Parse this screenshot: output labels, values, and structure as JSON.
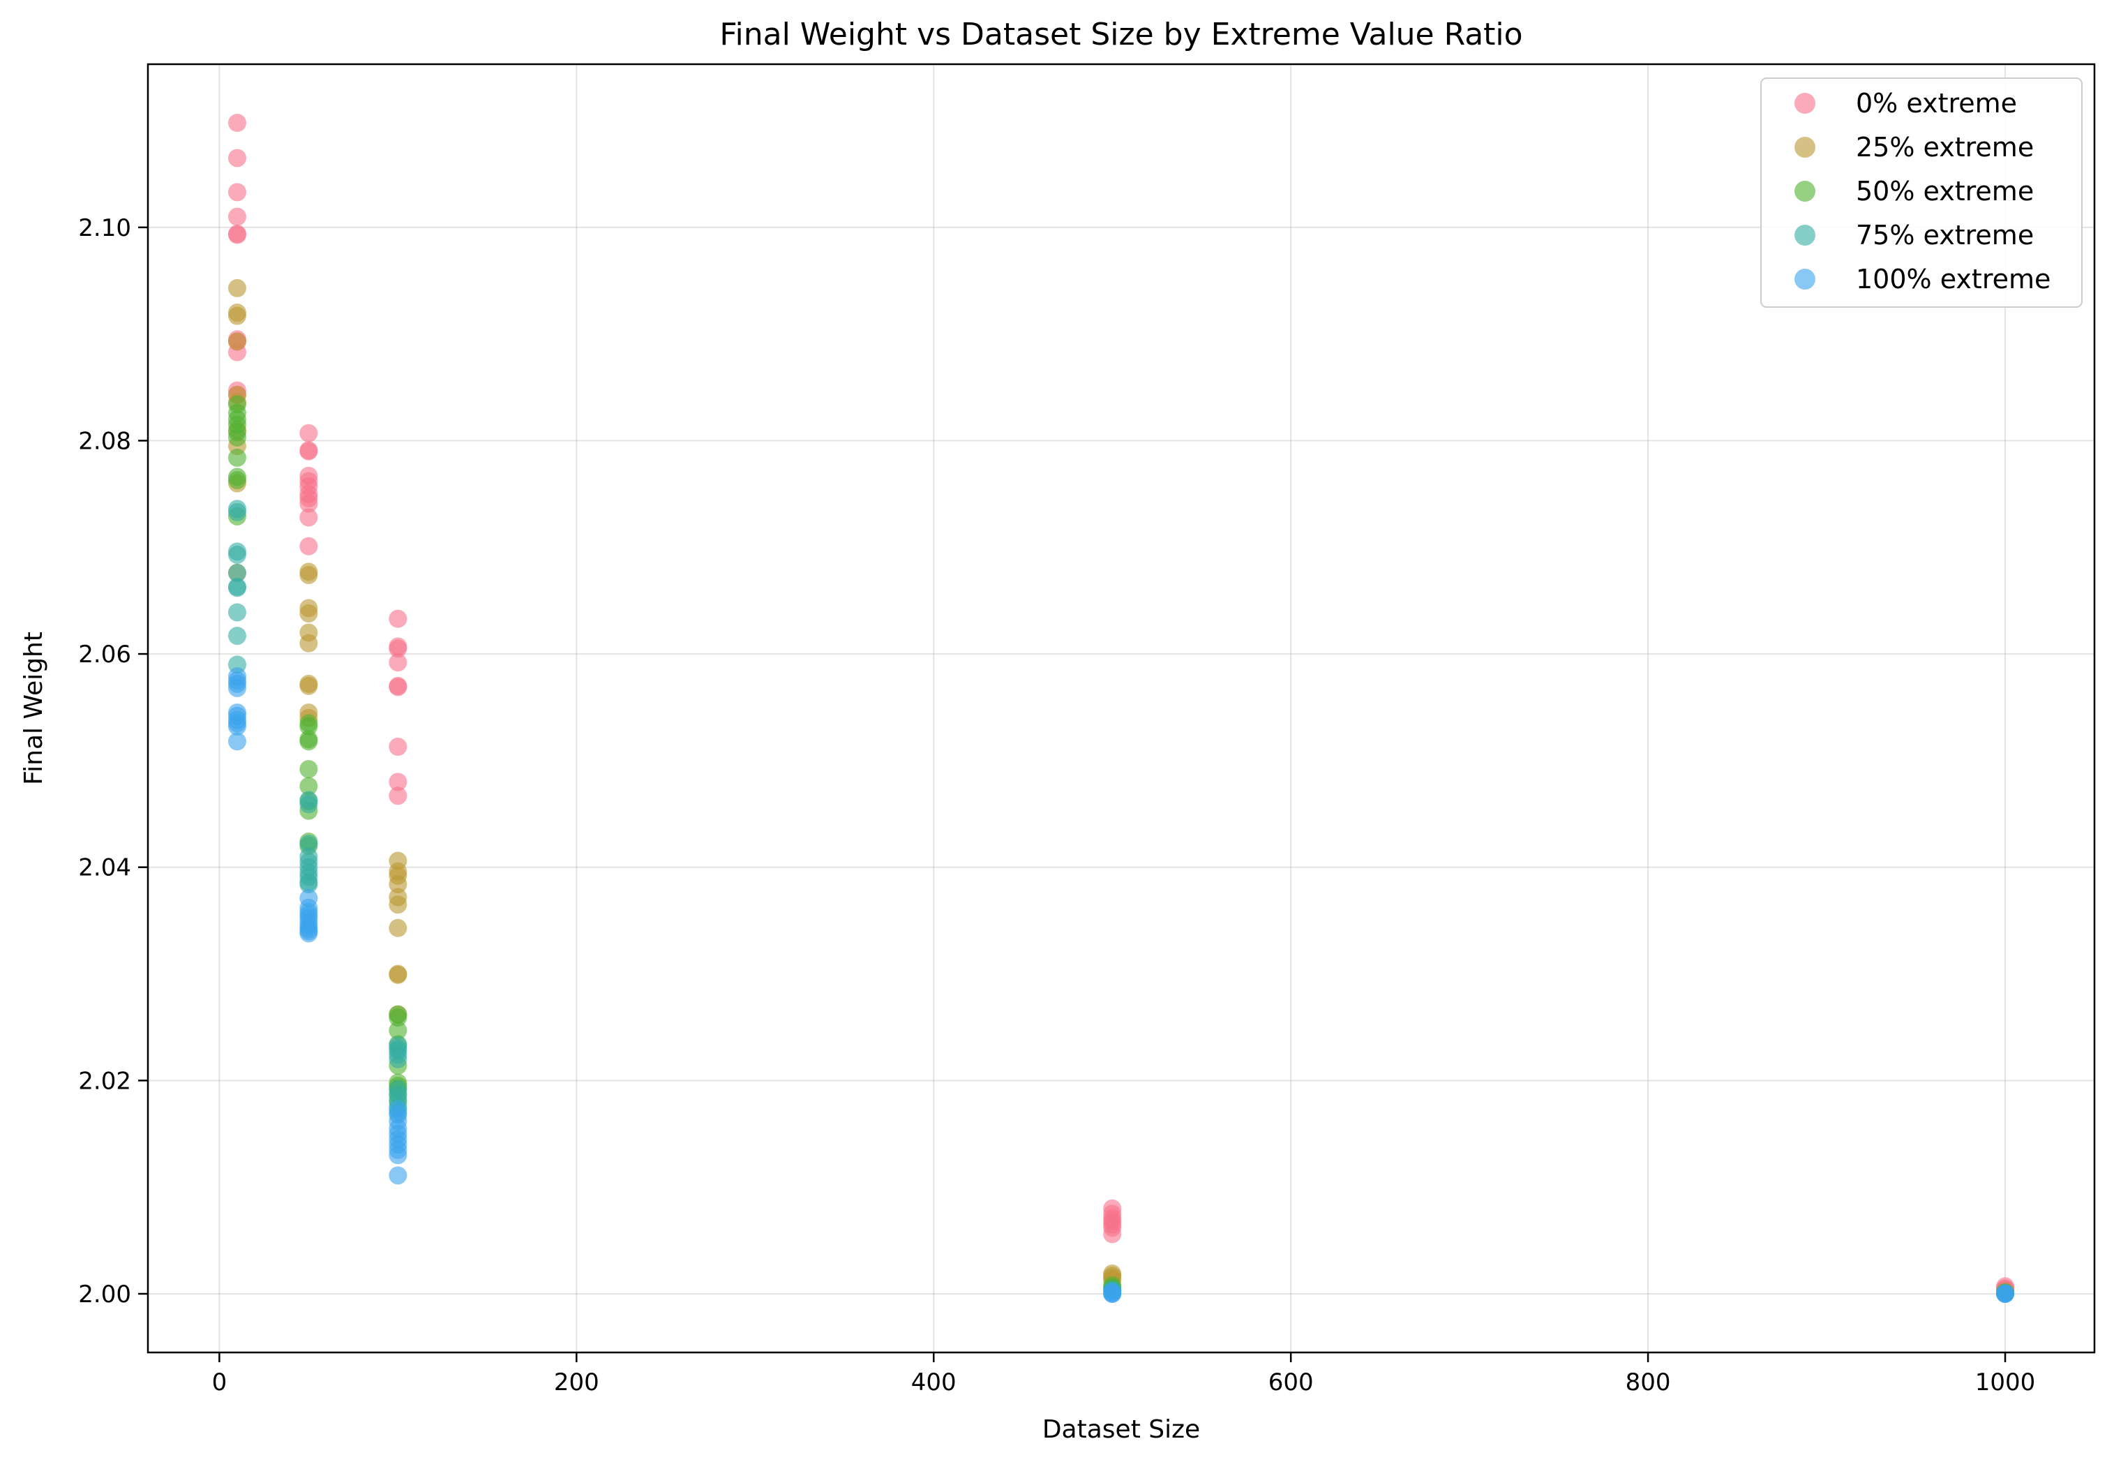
{
  "chart_data": {
    "type": "scatter",
    "title": "Final Weight vs Dataset Size by Extreme Value Ratio",
    "xlabel": "Dataset Size",
    "ylabel": "Final Weight",
    "xlim": [
      -40,
      1050
    ],
    "ylim": [
      1.9945,
      2.1153
    ],
    "xticks": [
      0,
      200,
      400,
      600,
      800,
      1000
    ],
    "xtick_labels": [
      "0",
      "200",
      "400",
      "600",
      "800",
      "1000"
    ],
    "yticks": [
      2.0,
      2.02,
      2.04,
      2.06,
      2.08,
      2.1
    ],
    "ytick_labels": [
      "2.00",
      "2.02",
      "2.04",
      "2.06",
      "2.08",
      "2.10"
    ],
    "grid": true,
    "legend_position": "top-right",
    "series": [
      {
        "name": "0% extreme",
        "color": "#f77189",
        "points": [
          [
            10,
            2.1098
          ],
          [
            10,
            2.1065
          ],
          [
            10,
            2.1033
          ],
          [
            10,
            2.101
          ],
          [
            10,
            2.0994
          ],
          [
            10,
            2.0993
          ],
          [
            10,
            2.0895
          ],
          [
            10,
            2.0893
          ],
          [
            10,
            2.0883
          ],
          [
            10,
            2.0847
          ],
          [
            10,
            2.0843
          ],
          [
            50,
            2.0807
          ],
          [
            50,
            2.0791
          ],
          [
            50,
            2.079
          ],
          [
            50,
            2.0767
          ],
          [
            50,
            2.0762
          ],
          [
            50,
            2.0757
          ],
          [
            50,
            2.075
          ],
          [
            50,
            2.0746
          ],
          [
            50,
            2.0741
          ],
          [
            50,
            2.0728
          ],
          [
            50,
            2.0701
          ],
          [
            100,
            2.0633
          ],
          [
            100,
            2.0607
          ],
          [
            100,
            2.0605
          ],
          [
            100,
            2.0592
          ],
          [
            100,
            2.057
          ],
          [
            100,
            2.0569
          ],
          [
            100,
            2.0513
          ],
          [
            100,
            2.048
          ],
          [
            100,
            2.0467
          ],
          [
            500,
            2.008
          ],
          [
            500,
            2.0075
          ],
          [
            500,
            2.0071
          ],
          [
            500,
            2.0068
          ],
          [
            500,
            2.0065
          ],
          [
            500,
            2.0062
          ],
          [
            500,
            2.0056
          ],
          [
            1000,
            2.0007
          ],
          [
            1000,
            2.0005
          ],
          [
            1000,
            2.0004
          ],
          [
            1000,
            2.0003
          ]
        ]
      },
      {
        "name": "25% extreme",
        "color": "#bb9832",
        "points": [
          [
            10,
            2.0943
          ],
          [
            10,
            2.092
          ],
          [
            10,
            2.0917
          ],
          [
            10,
            2.0893
          ],
          [
            10,
            2.0843
          ],
          [
            10,
            2.0836
          ],
          [
            10,
            2.081
          ],
          [
            10,
            2.0795
          ],
          [
            10,
            2.076
          ],
          [
            10,
            2.0676
          ],
          [
            50,
            2.0677
          ],
          [
            50,
            2.0674
          ],
          [
            50,
            2.0643
          ],
          [
            50,
            2.0638
          ],
          [
            50,
            2.062
          ],
          [
            50,
            2.061
          ],
          [
            50,
            2.0572
          ],
          [
            50,
            2.057
          ],
          [
            50,
            2.0545
          ],
          [
            50,
            2.054
          ],
          [
            100,
            2.0406
          ],
          [
            100,
            2.0396
          ],
          [
            100,
            2.0392
          ],
          [
            100,
            2.0384
          ],
          [
            100,
            2.0372
          ],
          [
            100,
            2.0365
          ],
          [
            100,
            2.0343
          ],
          [
            100,
            2.03
          ],
          [
            100,
            2.0299
          ],
          [
            100,
            2.0262
          ],
          [
            500,
            2.0019
          ],
          [
            500,
            2.0017
          ],
          [
            500,
            2.0015
          ],
          [
            500,
            2.0013
          ],
          [
            1000,
            2.0002
          ],
          [
            1000,
            2.0001
          ]
        ]
      },
      {
        "name": "50% extreme",
        "color": "#50b131",
        "points": [
          [
            10,
            2.0834
          ],
          [
            10,
            2.0826
          ],
          [
            10,
            2.082
          ],
          [
            10,
            2.0815
          ],
          [
            10,
            2.0808
          ],
          [
            10,
            2.0803
          ],
          [
            10,
            2.0784
          ],
          [
            10,
            2.0766
          ],
          [
            10,
            2.0763
          ],
          [
            10,
            2.0729
          ],
          [
            50,
            2.0535
          ],
          [
            50,
            2.0532
          ],
          [
            50,
            2.052
          ],
          [
            50,
            2.0518
          ],
          [
            50,
            2.0492
          ],
          [
            50,
            2.0476
          ],
          [
            50,
            2.0462
          ],
          [
            50,
            2.0453
          ],
          [
            50,
            2.0424
          ],
          [
            50,
            2.042
          ],
          [
            100,
            2.0262
          ],
          [
            100,
            2.0259
          ],
          [
            100,
            2.0247
          ],
          [
            100,
            2.0234
          ],
          [
            100,
            2.0214
          ],
          [
            100,
            2.0198
          ],
          [
            100,
            2.0195
          ],
          [
            100,
            2.0192
          ],
          [
            100,
            2.0187
          ],
          [
            100,
            2.018
          ],
          [
            500,
            2.0008
          ],
          [
            500,
            2.0006
          ],
          [
            500,
            2.0005
          ],
          [
            1000,
            2.0001
          ]
        ]
      },
      {
        "name": "75% extreme",
        "color": "#36ada4",
        "points": [
          [
            10,
            2.0736
          ],
          [
            10,
            2.0733
          ],
          [
            10,
            2.0696
          ],
          [
            10,
            2.0693
          ],
          [
            10,
            2.0676
          ],
          [
            10,
            2.0663
          ],
          [
            10,
            2.0662
          ],
          [
            10,
            2.0639
          ],
          [
            10,
            2.0617
          ],
          [
            10,
            2.059
          ],
          [
            50,
            2.0463
          ],
          [
            50,
            2.0459
          ],
          [
            50,
            2.0422
          ],
          [
            50,
            2.041
          ],
          [
            50,
            2.0405
          ],
          [
            50,
            2.04
          ],
          [
            50,
            2.0395
          ],
          [
            50,
            2.0391
          ],
          [
            50,
            2.0386
          ],
          [
            50,
            2.0384
          ],
          [
            100,
            2.0233
          ],
          [
            100,
            2.023
          ],
          [
            100,
            2.0228
          ],
          [
            100,
            2.0224
          ],
          [
            100,
            2.022
          ],
          [
            100,
            2.0192
          ],
          [
            100,
            2.0187
          ],
          [
            100,
            2.0182
          ],
          [
            100,
            2.0175
          ],
          [
            100,
            2.017
          ],
          [
            500,
            2.0004
          ],
          [
            500,
            2.0003
          ],
          [
            1000,
            2.0001
          ]
        ]
      },
      {
        "name": "100% extreme",
        "color": "#3ba3ec",
        "points": [
          [
            10,
            2.0579
          ],
          [
            10,
            2.0575
          ],
          [
            10,
            2.0572
          ],
          [
            10,
            2.0568
          ],
          [
            10,
            2.0545
          ],
          [
            10,
            2.0542
          ],
          [
            10,
            2.0538
          ],
          [
            10,
            2.0535
          ],
          [
            10,
            2.0532
          ],
          [
            10,
            2.0518
          ],
          [
            50,
            2.0371
          ],
          [
            50,
            2.0362
          ],
          [
            50,
            2.0358
          ],
          [
            50,
            2.0355
          ],
          [
            50,
            2.0352
          ],
          [
            50,
            2.0348
          ],
          [
            50,
            2.0345
          ],
          [
            50,
            2.0342
          ],
          [
            50,
            2.034
          ],
          [
            50,
            2.0338
          ],
          [
            100,
            2.0173
          ],
          [
            100,
            2.0168
          ],
          [
            100,
            2.0162
          ],
          [
            100,
            2.0155
          ],
          [
            100,
            2.015
          ],
          [
            100,
            2.0145
          ],
          [
            100,
            2.014
          ],
          [
            100,
            2.0135
          ],
          [
            100,
            2.013
          ],
          [
            100,
            2.0111
          ],
          [
            500,
            2.0002
          ],
          [
            500,
            2.0001
          ],
          [
            500,
            2.0
          ],
          [
            500,
            2.0
          ],
          [
            1000,
            2.0
          ],
          [
            1000,
            2.0
          ],
          [
            1000,
            2.0
          ]
        ]
      }
    ]
  }
}
